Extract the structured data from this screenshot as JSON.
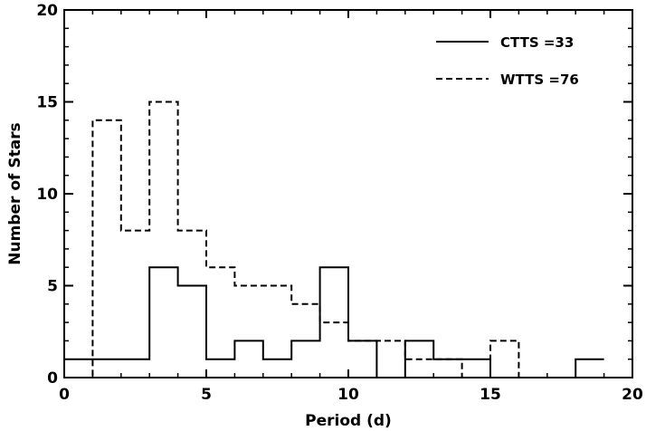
{
  "chart_data": {
    "type": "histogram",
    "xlabel": "Period (d)",
    "ylabel": "Number of Stars",
    "xlim": [
      0,
      20
    ],
    "ylim": [
      0,
      20
    ],
    "xticks": [
      0,
      5,
      10,
      15,
      20
    ],
    "yticks": [
      0,
      5,
      10,
      15,
      20
    ],
    "xtick_labels": [
      "0",
      "5",
      "10",
      "15",
      "20"
    ],
    "ytick_labels": [
      "0",
      "5",
      "10",
      "15",
      "20"
    ],
    "bin_edges": [
      0,
      1,
      2,
      3,
      4,
      5,
      6,
      7,
      8,
      9,
      10,
      11,
      12,
      13,
      14,
      15,
      16,
      17,
      18,
      19
    ],
    "series": [
      {
        "name": "CTTS",
        "legend_label": "CTTS =33",
        "line_style": "solid",
        "values": [
          1,
          1,
          1,
          6,
          5,
          1,
          2,
          1,
          2,
          6,
          2,
          0,
          2,
          1,
          1,
          0,
          0,
          0,
          1
        ]
      },
      {
        "name": "WTTS",
        "legend_label": "WTTS =76",
        "line_style": "dashed",
        "values": [
          0,
          14,
          8,
          15,
          8,
          6,
          5,
          5,
          4,
          3,
          2,
          2,
          1,
          1,
          0,
          2,
          0,
          0,
          0
        ]
      }
    ],
    "legend_position": "top-right",
    "grid": false,
    "colors": {
      "line": "#000000",
      "background": "#ffffff"
    }
  }
}
